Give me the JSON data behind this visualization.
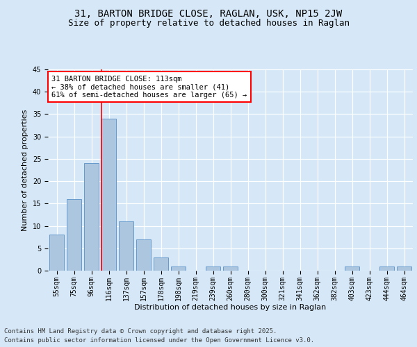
{
  "title1": "31, BARTON BRIDGE CLOSE, RAGLAN, USK, NP15 2JW",
  "title2": "Size of property relative to detached houses in Raglan",
  "xlabel": "Distribution of detached houses by size in Raglan",
  "ylabel": "Number of detached properties",
  "bar_labels": [
    "55sqm",
    "75sqm",
    "96sqm",
    "116sqm",
    "137sqm",
    "157sqm",
    "178sqm",
    "198sqm",
    "219sqm",
    "239sqm",
    "260sqm",
    "280sqm",
    "300sqm",
    "321sqm",
    "341sqm",
    "362sqm",
    "382sqm",
    "403sqm",
    "423sqm",
    "444sqm",
    "464sqm"
  ],
  "bar_values": [
    8,
    16,
    24,
    34,
    11,
    7,
    3,
    1,
    0,
    1,
    1,
    0,
    0,
    0,
    0,
    0,
    0,
    1,
    0,
    1,
    1
  ],
  "bar_color": "#adc6e0",
  "bar_edge_color": "#6699cc",
  "vline_color": "red",
  "vline_pos": 2.575,
  "annotation_text": "31 BARTON BRIDGE CLOSE: 113sqm\n← 38% of detached houses are smaller (41)\n61% of semi-detached houses are larger (65) →",
  "annotation_box_color": "white",
  "annotation_box_edge": "red",
  "ylim": [
    0,
    45
  ],
  "yticks": [
    0,
    5,
    10,
    15,
    20,
    25,
    30,
    35,
    40,
    45
  ],
  "background_color": "#d6e8f7",
  "plot_background": "#d6e8f7",
  "footer1": "Contains HM Land Registry data © Crown copyright and database right 2025.",
  "footer2": "Contains public sector information licensed under the Open Government Licence v3.0.",
  "title_fontsize": 10,
  "subtitle_fontsize": 9,
  "axis_label_fontsize": 8,
  "tick_fontsize": 7,
  "annotation_fontsize": 7.5,
  "footer_fontsize": 6.5
}
